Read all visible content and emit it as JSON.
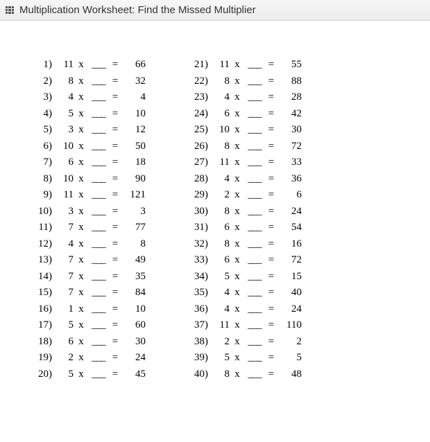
{
  "header": {
    "title": "Multiplication Worksheet: Find the Missed Multiplier"
  },
  "symbols": {
    "times": "x",
    "equals": "=",
    "blank": "___",
    "paren": ")"
  },
  "left": [
    {
      "n": "1",
      "a": "11",
      "r": "66"
    },
    {
      "n": "2",
      "a": "8",
      "r": "32"
    },
    {
      "n": "3",
      "a": "4",
      "r": "4"
    },
    {
      "n": "4",
      "a": "5",
      "r": "10"
    },
    {
      "n": "5",
      "a": "3",
      "r": "12"
    },
    {
      "n": "6",
      "a": "10",
      "r": "50"
    },
    {
      "n": "7",
      "a": "6",
      "r": "18"
    },
    {
      "n": "8",
      "a": "10",
      "r": "90"
    },
    {
      "n": "9",
      "a": "11",
      "r": "121"
    },
    {
      "n": "10",
      "a": "3",
      "r": "3"
    },
    {
      "n": "11",
      "a": "7",
      "r": "77"
    },
    {
      "n": "12",
      "a": "4",
      "r": "8"
    },
    {
      "n": "13",
      "a": "7",
      "r": "49"
    },
    {
      "n": "14",
      "a": "7",
      "r": "35"
    },
    {
      "n": "15",
      "a": "7",
      "r": "84"
    },
    {
      "n": "16",
      "a": "1",
      "r": "10"
    },
    {
      "n": "17",
      "a": "5",
      "r": "60"
    },
    {
      "n": "18",
      "a": "6",
      "r": "30"
    },
    {
      "n": "19",
      "a": "2",
      "r": "24"
    },
    {
      "n": "20",
      "a": "5",
      "r": "45"
    }
  ],
  "right": [
    {
      "n": "21",
      "a": "11",
      "r": "55"
    },
    {
      "n": "22",
      "a": "8",
      "r": "88"
    },
    {
      "n": "23",
      "a": "4",
      "r": "28"
    },
    {
      "n": "24",
      "a": "6",
      "r": "42"
    },
    {
      "n": "25",
      "a": "10",
      "r": "30"
    },
    {
      "n": "26",
      "a": "8",
      "r": "72"
    },
    {
      "n": "27",
      "a": "11",
      "r": "33"
    },
    {
      "n": "28",
      "a": "4",
      "r": "36"
    },
    {
      "n": "29",
      "a": "2",
      "r": "6"
    },
    {
      "n": "30",
      "a": "8",
      "r": "24"
    },
    {
      "n": "31",
      "a": "6",
      "r": "54"
    },
    {
      "n": "32",
      "a": "8",
      "r": "16"
    },
    {
      "n": "33",
      "a": "6",
      "r": "72"
    },
    {
      "n": "34",
      "a": "5",
      "r": "15"
    },
    {
      "n": "35",
      "a": "4",
      "r": "40"
    },
    {
      "n": "36",
      "a": "4",
      "r": "24"
    },
    {
      "n": "37",
      "a": "11",
      "r": "110"
    },
    {
      "n": "38",
      "a": "2",
      "r": "2"
    },
    {
      "n": "39",
      "a": "5",
      "r": "5"
    },
    {
      "n": "40",
      "a": "8",
      "r": "48"
    }
  ]
}
